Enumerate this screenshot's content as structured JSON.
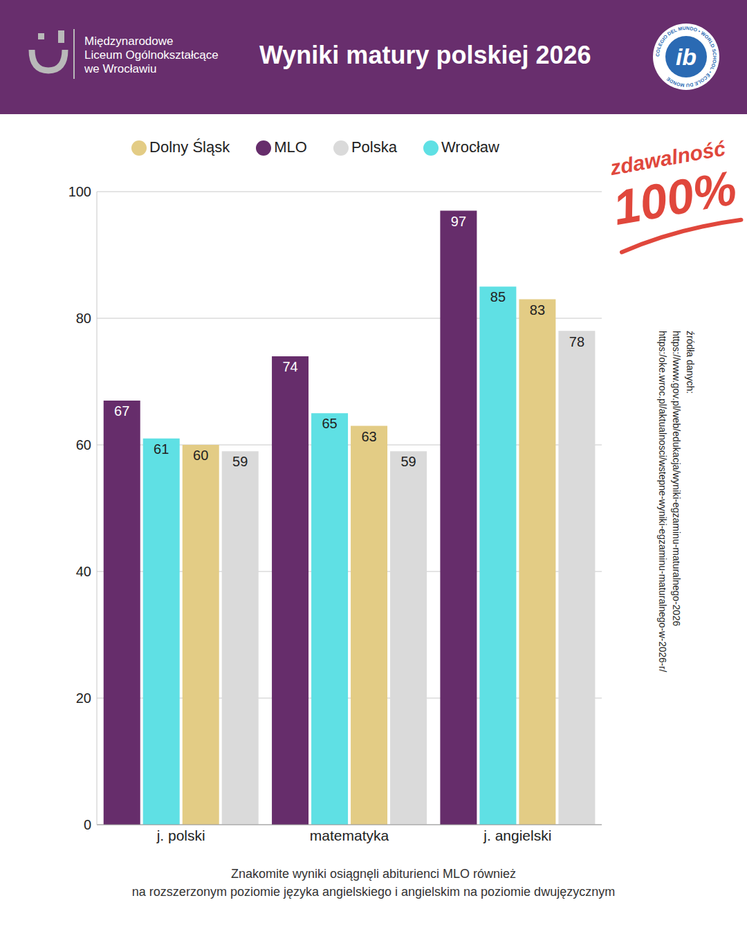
{
  "header": {
    "school": [
      "Międzynarodowe",
      "Liceum Ogólnokształcące",
      "we Wrocławiu"
    ],
    "ib_logo": {
      "text": "ib",
      "ring": "COLEGIO DEL MUNDO • WORLD SCHOOL • ÉCOLE DU MONDE"
    }
  },
  "chart_data": {
    "type": "bar",
    "title": "Wyniki matury polskiej 2026",
    "categories": [
      "j. polski",
      "matematyka",
      "j. angielski"
    ],
    "series": [
      {
        "name": "MLO",
        "color": "#662d6b",
        "values": [
          67,
          74,
          97
        ]
      },
      {
        "name": "Wrocław",
        "color": "#5fe0e4",
        "values": [
          61,
          65,
          85
        ]
      },
      {
        "name": "Dolny Śląsk",
        "color": "#e3cc85",
        "values": [
          60,
          63,
          83
        ]
      },
      {
        "name": "Polska",
        "color": "#dadada",
        "values": [
          59,
          59,
          78
        ]
      }
    ],
    "ylim": [
      0,
      100
    ],
    "yticks": [
      0,
      20,
      40,
      60,
      80,
      100
    ],
    "grid": true,
    "legend": "top",
    "data_labels": true
  },
  "annotation": {
    "label": "zdawalność",
    "value": "100%"
  },
  "sources": {
    "title": "źródła danych:",
    "links": [
      "https://www.gov.pl/web/edukacja/wyniki-egzaminu-maturalnego-2026",
      "https:/oke.wroc.pl/aktualnosci/wstepne-wyniki-egzaminu-maturalnego-w-2026-r/"
    ]
  },
  "footer": [
    "Znakomite wyniki osiągnęli abiturienci MLO również",
    "na rozszerzonym poziomie języka angielskiego i angielskim na poziomie dwujęzycznym"
  ]
}
